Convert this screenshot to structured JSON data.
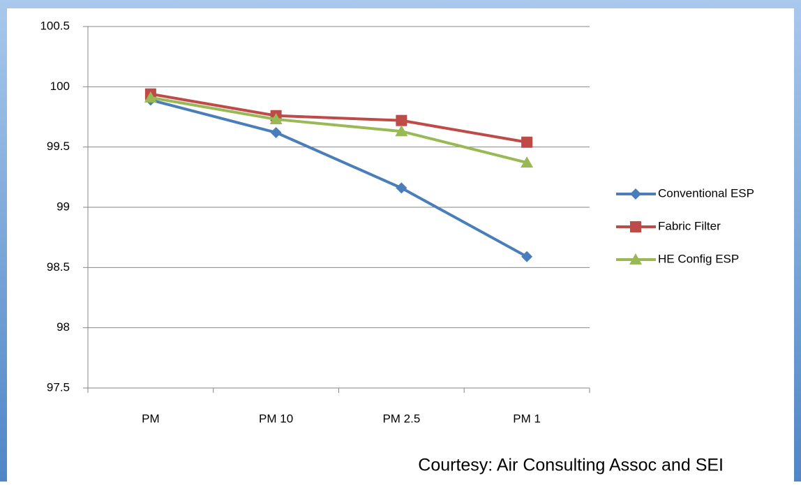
{
  "chart_data": {
    "type": "line",
    "categories": [
      "PM",
      "PM 10",
      "PM 2.5",
      "PM 1"
    ],
    "series": [
      {
        "name": "Conventional ESP",
        "color": "#4a7ebb",
        "marker": "diamond",
        "values": [
          99.89,
          99.62,
          99.16,
          98.59
        ]
      },
      {
        "name": "Fabric Filter",
        "color": "#be4b48",
        "marker": "square",
        "values": [
          99.94,
          99.76,
          99.72,
          99.54
        ]
      },
      {
        "name": "HE Config ESP",
        "color": "#98b954",
        "marker": "triangle",
        "values": [
          99.91,
          99.73,
          99.63,
          99.37
        ]
      }
    ],
    "ylim": [
      97.5,
      100.5
    ],
    "yticks": [
      97.5,
      98,
      98.5,
      99,
      99.5,
      100,
      100.5
    ],
    "grid": true,
    "legend": "right",
    "annotation": "Courtesy: Air Consulting Assoc and SEI"
  }
}
